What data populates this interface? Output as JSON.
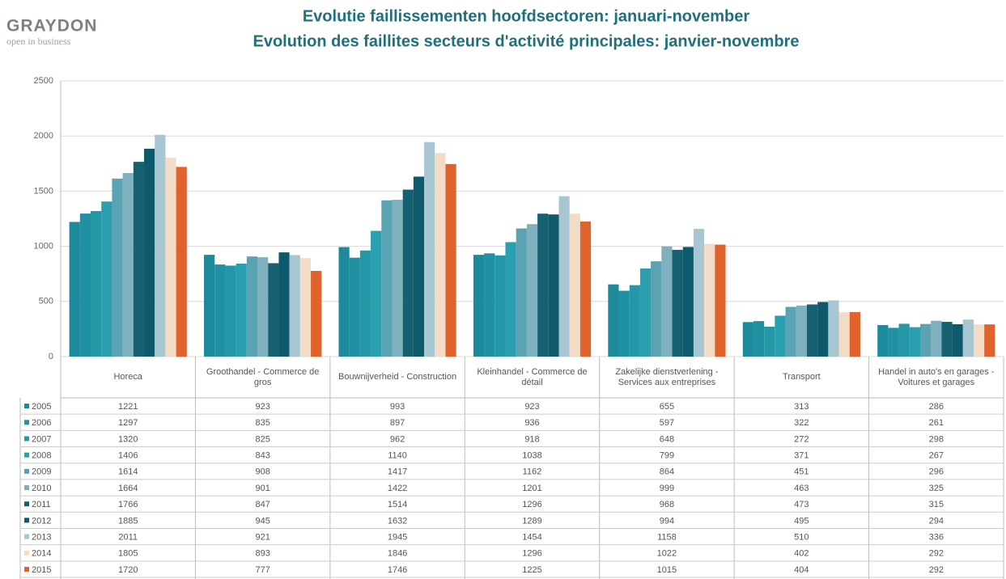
{
  "brand": {
    "name": "GRAYDON",
    "tagline": "open in business"
  },
  "chart_data": {
    "type": "bar",
    "title": [
      "Evolutie faillissementen hoofdsectoren: januari-november",
      "Evolution des faillites secteurs d'activité principales: janvier-novembre"
    ],
    "categories": [
      "Horeca",
      "Groothandel - Commerce de gros",
      "Bouwnijverheid - Construction",
      "Kleinhandel - Commerce de détail",
      "Zakelijke dienstverlening - Services aux entreprises",
      "Transport",
      "Handel in auto's en garages - Voitures et garages"
    ],
    "series": [
      {
        "name": "2005",
        "color": "#1d8a9b",
        "values": [
          1221,
          923,
          993,
          923,
          655,
          313,
          286
        ]
      },
      {
        "name": "2006",
        "color": "#1f91a2",
        "values": [
          1297,
          835,
          897,
          936,
          597,
          322,
          261
        ]
      },
      {
        "name": "2007",
        "color": "#2598a8",
        "values": [
          1320,
          825,
          962,
          918,
          648,
          272,
          298
        ]
      },
      {
        "name": "2008",
        "color": "#2a9fb0",
        "values": [
          1406,
          843,
          1140,
          1038,
          799,
          371,
          267
        ]
      },
      {
        "name": "2009",
        "color": "#5ba2b2",
        "values": [
          1614,
          908,
          1417,
          1162,
          864,
          451,
          296
        ]
      },
      {
        "name": "2010",
        "color": "#7fb0bd",
        "values": [
          1664,
          901,
          1422,
          1201,
          999,
          463,
          325
        ]
      },
      {
        "name": "2011",
        "color": "#176072",
        "values": [
          1766,
          847,
          1514,
          1296,
          968,
          473,
          315
        ]
      },
      {
        "name": "2012",
        "color": "#0e596b",
        "values": [
          1885,
          945,
          1632,
          1289,
          994,
          495,
          294
        ]
      },
      {
        "name": "2013",
        "color": "#a8c6d2",
        "values": [
          2011,
          921,
          1945,
          1454,
          1158,
          510,
          336
        ]
      },
      {
        "name": "2014",
        "color": "#f3dcc6",
        "values": [
          1805,
          893,
          1846,
          1296,
          1022,
          402,
          292
        ]
      },
      {
        "name": "2015",
        "color": "#e0622c",
        "values": [
          1720,
          777,
          1746,
          1225,
          1015,
          404,
          292
        ]
      }
    ],
    "ylim": [
      0,
      2500
    ],
    "yticks": [
      0,
      500,
      1000,
      1500,
      2000,
      2500
    ],
    "grid": true
  }
}
